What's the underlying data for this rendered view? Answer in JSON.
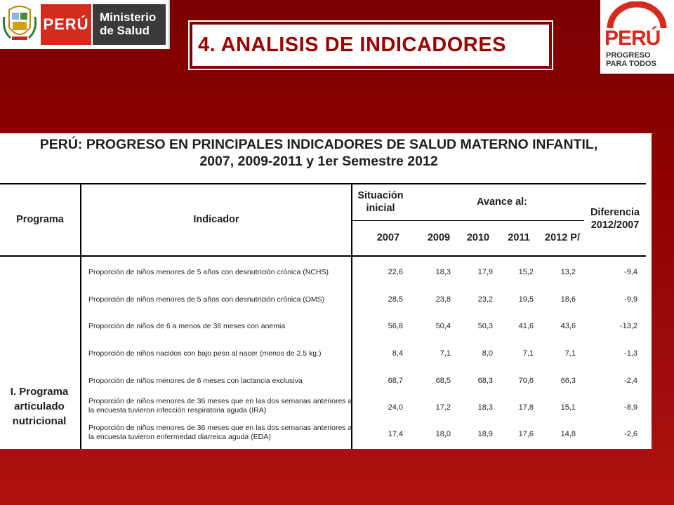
{
  "header": {
    "peru_label": "PERÚ",
    "ministry_line1": "Ministerio",
    "ministry_line2": "de Salud",
    "slide_title": "4. ANALISIS DE INDICADORES",
    "right_logo_peru": "PERÚ",
    "right_logo_tag1": "PROGRESO",
    "right_logo_tag2": "PARA TODOS"
  },
  "colors": {
    "background": "#8e0000",
    "brand_red": "#d52b1e",
    "title_text": "#9a0000"
  },
  "table": {
    "title_line1": "PERÚ: PROGRESO EN PRINCIPALES INDICADORES DE SALUD MATERNO INFANTIL,",
    "title_line2": "2007, 2009-2011 y 1er Semestre 2012",
    "headers": {
      "programa": "Programa",
      "indicador": "Indicador",
      "situacion_1": "Situación",
      "situacion_2": "inicial",
      "avance": "Avance al:",
      "diferencia_1": "Diferencia",
      "diferencia_2": "2012/2007",
      "years": [
        "2007",
        "2009",
        "2010",
        "2011",
        "2012 P/"
      ]
    },
    "program_line1": "I. Programa",
    "program_line2": "articulado",
    "program_line3": "nutricional",
    "rows": [
      {
        "indicator_1": "Proporción de niños menores de 5 años con desnutrición crónica (NCHS)",
        "indicator_2": "",
        "values": [
          "22,6",
          "18,3",
          "17,9",
          "15,2",
          "13,2",
          "-9,4"
        ]
      },
      {
        "indicator_1": "Proporción de niños menores de 5 años con desnutrición crónica (OMS)",
        "indicator_2": "",
        "values": [
          "28,5",
          "23,8",
          "23,2",
          "19,5",
          "18,6",
          "-9,9"
        ]
      },
      {
        "indicator_1": "Proporción de niños de 6 a menos de 36 meses con anemia",
        "indicator_2": "",
        "values": [
          "56,8",
          "50,4",
          "50,3",
          "41,6",
          "43,6",
          "-13,2"
        ]
      },
      {
        "indicator_1": "Proporción de niños nacidos con bajo peso al nacer (menos de 2.5 kg.)",
        "indicator_2": "",
        "values": [
          "8,4",
          "7,1",
          "8,0",
          "7,1",
          "7,1",
          "-1,3"
        ]
      },
      {
        "indicator_1": "Proporción de niños menores de 6 meses con lactancia exclusiva",
        "indicator_2": "",
        "values": [
          "68,7",
          "68,5",
          "68,3",
          "70,6",
          "66,3",
          "-2,4"
        ]
      },
      {
        "indicator_1": "Proporción de niños menores de 36 meses que en las dos semanas anteriores a",
        "indicator_2": "la encuesta tuvieron infección respiratoria aguda (IRA)",
        "values": [
          "24,0",
          "17,2",
          "18,3",
          "17,8",
          "15,1",
          "-8,9"
        ]
      },
      {
        "indicator_1": "Proporción de niños menores de 36 meses que en las dos semanas anteriores a",
        "indicator_2": "la encuesta tuvieron enfermedad diarreica aguda (EDA)",
        "values": [
          "17,4",
          "18,0",
          "18,9",
          "17,6",
          "14,8",
          "-2,6"
        ]
      }
    ]
  }
}
